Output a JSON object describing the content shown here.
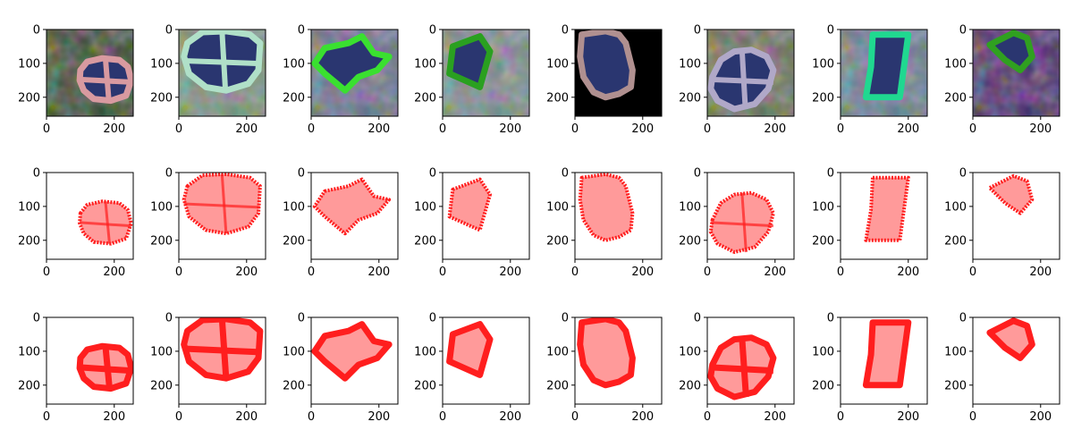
{
  "chart_data": {
    "type": "image-grid",
    "rows": 3,
    "cols": 8,
    "axes": {
      "xlim": [
        0,
        256
      ],
      "ylim": [
        256,
        0
      ],
      "xticks": [
        0,
        200
      ],
      "yticks": [
        0,
        100,
        200
      ],
      "xtick_labels": [
        "0",
        "200"
      ],
      "ytick_labels": [
        "0",
        "100",
        "200"
      ],
      "grid": false
    },
    "colors": {
      "mask_fill": "#ff9a9a",
      "mask_edge": "#ff1e1e",
      "shape_fill": "#2a3670",
      "row0_backgrounds": [
        "#3a4a32",
        "#7a8f7a",
        "#6a6f8a",
        "#7a8a8a",
        "#000000",
        "#6a6f5a",
        "#6a7a8f",
        "#4a2a6a"
      ],
      "row0_borders": [
        "#d89aa0",
        "#b0e0c8",
        "#3ae030",
        "#2aa020",
        "#b09090",
        "#b0a8c8",
        "#20d890",
        "#30a020"
      ]
    }
  }
}
